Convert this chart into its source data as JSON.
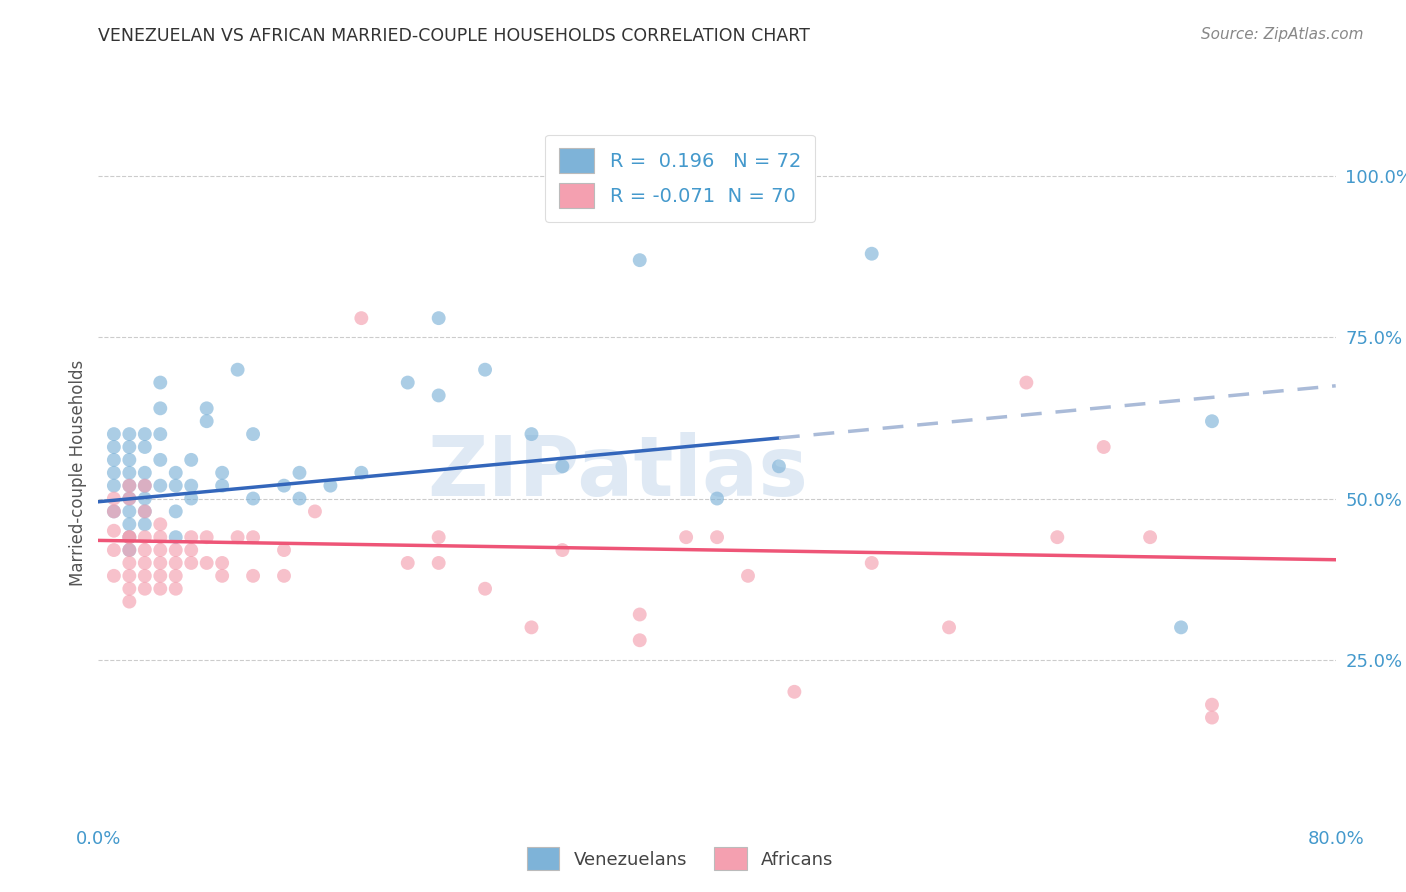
{
  "title": "VENEZUELAN VS AFRICAN MARRIED-COUPLE HOUSEHOLDS CORRELATION CHART",
  "source": "Source: ZipAtlas.com",
  "ylabel": "Married-couple Households",
  "legend_blue_r": "0.196",
  "legend_blue_n": "72",
  "legend_pink_r": "-0.071",
  "legend_pink_n": "70",
  "blue_color": "#7EB3D8",
  "pink_color": "#F4A0B0",
  "blue_line_color": "#3366BB",
  "pink_line_color": "#EE5577",
  "dashed_line_color": "#AABBD8",
  "watermark": "ZIPatlas",
  "background_color": "#FFFFFF",
  "grid_color": "#CCCCCC",
  "xlim": [
    0.0,
    0.8
  ],
  "ylim": [
    0.0,
    1.05
  ],
  "blue_scatter_x": [
    0.01,
    0.01,
    0.01,
    0.01,
    0.01,
    0.01,
    0.02,
    0.02,
    0.02,
    0.02,
    0.02,
    0.02,
    0.02,
    0.02,
    0.02,
    0.02,
    0.03,
    0.03,
    0.03,
    0.03,
    0.03,
    0.03,
    0.03,
    0.04,
    0.04,
    0.04,
    0.04,
    0.04,
    0.05,
    0.05,
    0.05,
    0.05,
    0.06,
    0.06,
    0.06,
    0.07,
    0.07,
    0.08,
    0.08,
    0.09,
    0.1,
    0.1,
    0.12,
    0.13,
    0.13,
    0.15,
    0.17,
    0.2,
    0.22,
    0.22,
    0.25,
    0.28,
    0.3,
    0.35,
    0.4,
    0.44,
    0.5,
    0.7,
    0.72
  ],
  "blue_scatter_y": [
    0.52,
    0.54,
    0.56,
    0.48,
    0.58,
    0.6,
    0.52,
    0.5,
    0.54,
    0.56,
    0.48,
    0.46,
    0.44,
    0.42,
    0.58,
    0.6,
    0.52,
    0.5,
    0.54,
    0.48,
    0.46,
    0.6,
    0.58,
    0.64,
    0.68,
    0.6,
    0.56,
    0.52,
    0.54,
    0.52,
    0.48,
    0.44,
    0.52,
    0.5,
    0.56,
    0.64,
    0.62,
    0.54,
    0.52,
    0.7,
    0.6,
    0.5,
    0.52,
    0.5,
    0.54,
    0.52,
    0.54,
    0.68,
    0.66,
    0.78,
    0.7,
    0.6,
    0.55,
    0.87,
    0.5,
    0.55,
    0.88,
    0.3,
    0.62
  ],
  "pink_scatter_x": [
    0.01,
    0.01,
    0.01,
    0.01,
    0.01,
    0.02,
    0.02,
    0.02,
    0.02,
    0.02,
    0.02,
    0.02,
    0.02,
    0.02,
    0.03,
    0.03,
    0.03,
    0.03,
    0.03,
    0.03,
    0.03,
    0.04,
    0.04,
    0.04,
    0.04,
    0.04,
    0.04,
    0.05,
    0.05,
    0.05,
    0.05,
    0.06,
    0.06,
    0.06,
    0.07,
    0.07,
    0.08,
    0.08,
    0.09,
    0.1,
    0.1,
    0.12,
    0.12,
    0.14,
    0.17,
    0.2,
    0.22,
    0.22,
    0.25,
    0.28,
    0.3,
    0.35,
    0.35,
    0.38,
    0.4,
    0.42,
    0.45,
    0.5,
    0.55,
    0.6,
    0.62,
    0.65,
    0.68,
    0.72,
    0.72
  ],
  "pink_scatter_y": [
    0.45,
    0.42,
    0.48,
    0.38,
    0.5,
    0.44,
    0.42,
    0.4,
    0.38,
    0.5,
    0.36,
    0.34,
    0.52,
    0.44,
    0.44,
    0.42,
    0.4,
    0.38,
    0.48,
    0.36,
    0.52,
    0.44,
    0.42,
    0.38,
    0.36,
    0.4,
    0.46,
    0.42,
    0.4,
    0.38,
    0.36,
    0.44,
    0.4,
    0.42,
    0.44,
    0.4,
    0.4,
    0.38,
    0.44,
    0.44,
    0.38,
    0.42,
    0.38,
    0.48,
    0.78,
    0.4,
    0.4,
    0.44,
    0.36,
    0.3,
    0.42,
    0.32,
    0.28,
    0.44,
    0.44,
    0.38,
    0.2,
    0.4,
    0.3,
    0.68,
    0.44,
    0.58,
    0.44,
    0.18,
    0.16
  ],
  "blue_line_x0": 0.0,
  "blue_line_x_solid_end": 0.44,
  "blue_line_x_dashed_end": 0.8,
  "blue_line_y0": 0.495,
  "blue_line_slope": 0.225,
  "pink_line_x0": 0.0,
  "pink_line_x1": 0.8,
  "pink_line_y0": 0.435,
  "pink_line_y1": 0.405
}
